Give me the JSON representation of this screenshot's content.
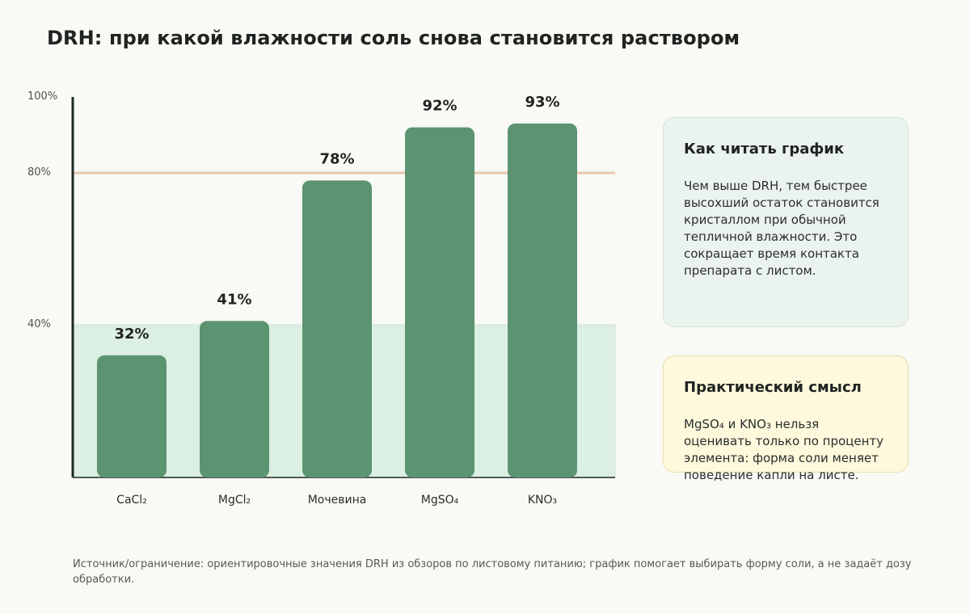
{
  "title": "DRH: при какой влажности соль снова становится раствором",
  "chart_data": {
    "type": "bar",
    "categories": [
      "CaCl₂",
      "MgCl₂",
      "Мочевина",
      "MgSO₄",
      "KNO₃"
    ],
    "values": [
      32,
      41,
      78,
      92,
      93
    ],
    "value_labels": [
      "32%",
      "41%",
      "78%",
      "92%",
      "93%"
    ],
    "y_ticks": [
      {
        "value": 100,
        "label": "100%"
      },
      {
        "value": 80,
        "label": "80%"
      },
      {
        "value": 40,
        "label": "40%"
      }
    ],
    "ylim": [
      0,
      100
    ],
    "reference_line": 80,
    "shaded_band": [
      0,
      40
    ],
    "colors": {
      "bar": "#5c9472",
      "band": "#dcefe3",
      "reference_line": "#e8c6b0",
      "axis": "#1c2b22"
    }
  },
  "cards": {
    "read": {
      "title": "Как читать график",
      "text": "Чем выше DRH, тем быстрее высохший остаток становится кристаллом при обычной тепличной влажности. Это сокращает время контакта препарата с листом."
    },
    "practical": {
      "title": "Практический смысл",
      "text": "MgSO₄ и KNO₃ нельзя оценивать только по проценту элемента: форма соли меняет поведение капли на листе."
    }
  },
  "footer": "Источник/ограничение: ориентировочные значения DRH из обзоров по листовому питанию; график помогает выбирать форму соли, а не задаёт дозу обработки."
}
